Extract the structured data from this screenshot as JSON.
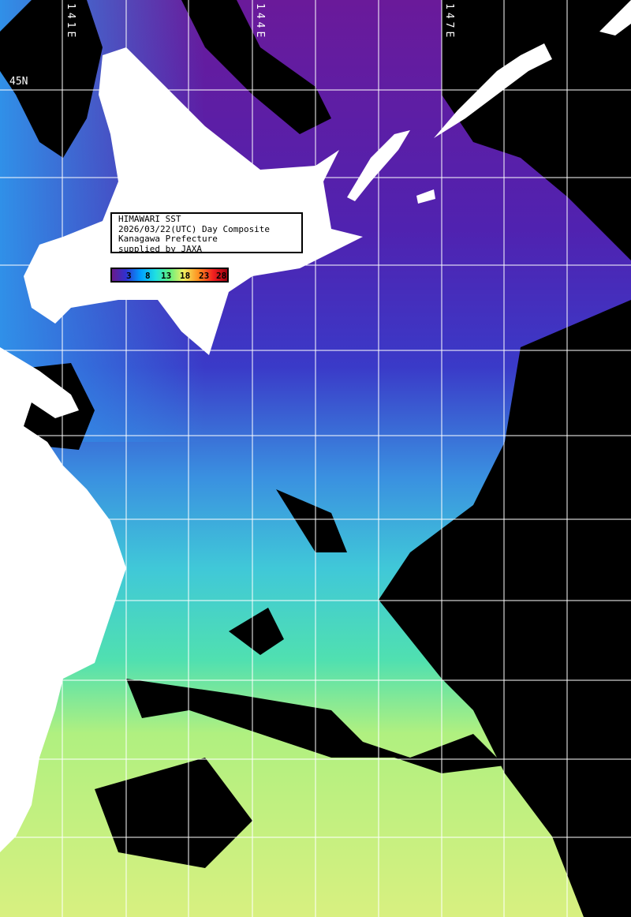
{
  "info_box": {
    "line1": "HIMAWARI SST",
    "line2": "2026/03/22(UTC) Day Composite",
    "line3": "Kanagawa Prefecture",
    "line4": "supplied by JAXA"
  },
  "colorbar": {
    "ticks": [
      "3",
      "8",
      "13",
      "18",
      "23",
      "28"
    ],
    "colors": [
      "#6a1a8a",
      "#3030d0",
      "#00a0ff",
      "#20e0e0",
      "#60f080",
      "#f0f060",
      "#ff9020",
      "#f02020",
      "#a00010"
    ]
  },
  "grid_labels": {
    "lon": [
      "141E",
      "144E",
      "147E"
    ],
    "lat": [
      "45N"
    ]
  },
  "colors": {
    "land": "#ffffff",
    "cloud": "#000000",
    "grid": "#ffffff"
  }
}
